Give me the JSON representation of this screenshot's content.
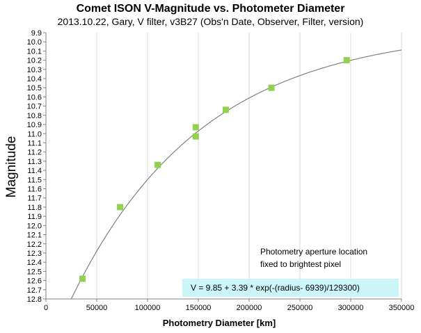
{
  "chart_data": {
    "type": "scatter",
    "title": "Comet ISON V-Magnitude vs. Photometer Diameter",
    "subtitle": "2013.10.22,  Gary, V filter, v3B27 (Obs'n Date, Observer, Filter, version)",
    "xlabel": "Photometry Diameter  [km]",
    "ylabel": "Magnitude",
    "xlim": [
      0,
      350000
    ],
    "ylim": [
      12.8,
      9.9
    ],
    "y_inverted": true,
    "x_ticks": [
      "0",
      "50000",
      "100000",
      "150000",
      "200000",
      "250000",
      "300000",
      "350000"
    ],
    "y_ticks": [
      "9.9",
      "10.0",
      "10.1",
      "10.2",
      "10.3",
      "10.4",
      "10.5",
      "10.6",
      "10.7",
      "10.8",
      "10.9",
      "11.0",
      "11.1",
      "11.2",
      "11.3",
      "11.4",
      "11.5",
      "11.6",
      "11.7",
      "11.8",
      "11.9",
      "12.0",
      "12.1",
      "12.2",
      "12.3",
      "12.4",
      "12.5",
      "12.6",
      "12.7",
      "12.8"
    ],
    "grid": "vertical",
    "series": [
      {
        "marker": "square",
        "color": "#92d050",
        "points": [
          {
            "x": 36000,
            "y": 12.58
          },
          {
            "x": 73000,
            "y": 11.8
          },
          {
            "x": 110000,
            "y": 11.34
          },
          {
            "x": 147500,
            "y": 10.93
          },
          {
            "x": 147500,
            "y": 11.03
          },
          {
            "x": 177000,
            "y": 10.74
          },
          {
            "x": 222000,
            "y": 10.5
          },
          {
            "x": 296000,
            "y": 10.2
          }
        ]
      }
    ],
    "fit": {
      "color": "#808080",
      "a": 9.85,
      "b": 3.39,
      "x0": 6939,
      "scale": 129300
    },
    "annotations": {
      "note_line1": "Photometry aperture location",
      "note_line2": "fixed to brightest pixel",
      "formula": "V = 9.85  + 3.39 * exp(-(radius- 6939)/129300)"
    },
    "colors": {
      "formula_box": "#ccf5fa",
      "grid": "#d9d9d9",
      "axis": "#808080"
    }
  }
}
